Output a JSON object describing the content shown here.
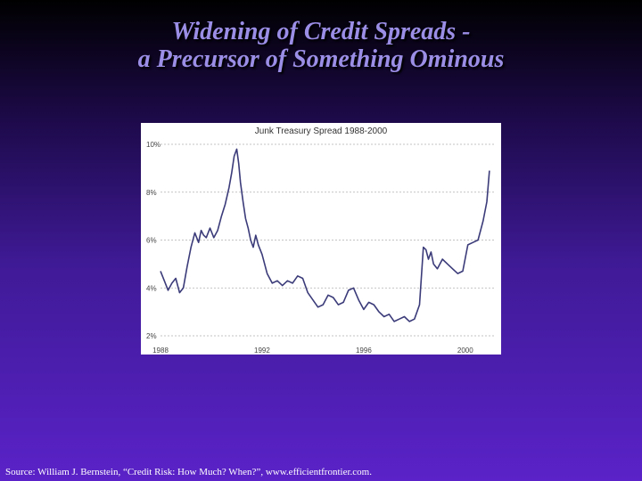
{
  "slide": {
    "title_line1": "Widening of Credit Spreads -",
    "title_line2": "a Precursor of Something Ominous",
    "source": "Source: William J. Bernstein, “Credit Risk: How Much? When?”, www.efficientfrontier.com."
  },
  "colors": {
    "line": "#3b3b7a",
    "grid": "#b0b0b0",
    "title": "#9b8ee6"
  },
  "chart_data": {
    "type": "line",
    "title": "Junk Treasury Spread 1988-2000",
    "xlabel": "",
    "ylabel": "",
    "xlim": [
      1988,
      2001.2
    ],
    "ylim": [
      2,
      10
    ],
    "y_ticks": [
      2,
      4,
      6,
      8,
      10
    ],
    "y_tick_labels": [
      "2%",
      "4%",
      "6%",
      "8%",
      "10%"
    ],
    "x_ticks": [
      1988,
      1992,
      1996,
      2000
    ],
    "x_tick_labels": [
      "1988",
      "1992",
      "1996",
      "2000"
    ],
    "grid": true,
    "series": [
      {
        "x": [
          1988.0,
          1988.15,
          1988.3,
          1988.45,
          1988.6,
          1988.75,
          1988.9,
          1989.05,
          1989.2,
          1989.35,
          1989.5,
          1989.6,
          1989.7,
          1989.8,
          1989.95,
          1990.1,
          1990.25,
          1990.4,
          1990.55,
          1990.7,
          1990.8,
          1990.9,
          1991.0,
          1991.08,
          1991.15,
          1991.25,
          1991.35,
          1991.45,
          1991.55,
          1991.65,
          1991.75,
          1991.85,
          1992.0,
          1992.2,
          1992.4,
          1992.6,
          1992.8,
          1993.0,
          1993.2,
          1993.4,
          1993.6,
          1993.8,
          1994.0,
          1994.2,
          1994.4,
          1994.6,
          1994.8,
          1995.0,
          1995.2,
          1995.4,
          1995.6,
          1995.8,
          1996.0,
          1996.2,
          1996.4,
          1996.6,
          1996.8,
          1997.0,
          1997.2,
          1997.4,
          1997.6,
          1997.8,
          1998.0,
          1998.2,
          1998.35,
          1998.45,
          1998.55,
          1998.65,
          1998.75,
          1998.9,
          1999.1,
          1999.3,
          1999.5,
          1999.7,
          1999.9,
          2000.1,
          2000.3,
          2000.5,
          2000.7,
          2000.85,
          2000.95
        ],
        "y": [
          4.7,
          4.3,
          3.9,
          4.2,
          4.4,
          3.8,
          4.0,
          4.9,
          5.7,
          6.3,
          5.9,
          6.4,
          6.2,
          6.1,
          6.5,
          6.1,
          6.4,
          7.0,
          7.5,
          8.2,
          8.8,
          9.5,
          9.8,
          9.2,
          8.4,
          7.6,
          6.9,
          6.5,
          6.0,
          5.7,
          6.2,
          5.8,
          5.4,
          4.6,
          4.2,
          4.3,
          4.1,
          4.3,
          4.2,
          4.5,
          4.4,
          3.8,
          3.5,
          3.2,
          3.3,
          3.7,
          3.6,
          3.3,
          3.4,
          3.9,
          4.0,
          3.5,
          3.1,
          3.4,
          3.3,
          3.0,
          2.8,
          2.9,
          2.6,
          2.7,
          2.8,
          2.6,
          2.7,
          3.3,
          5.7,
          5.6,
          5.2,
          5.5,
          5.0,
          4.8,
          5.2,
          5.0,
          4.8,
          4.6,
          4.7,
          5.8,
          5.9,
          6.0,
          6.8,
          7.6,
          8.9
        ]
      }
    ]
  }
}
